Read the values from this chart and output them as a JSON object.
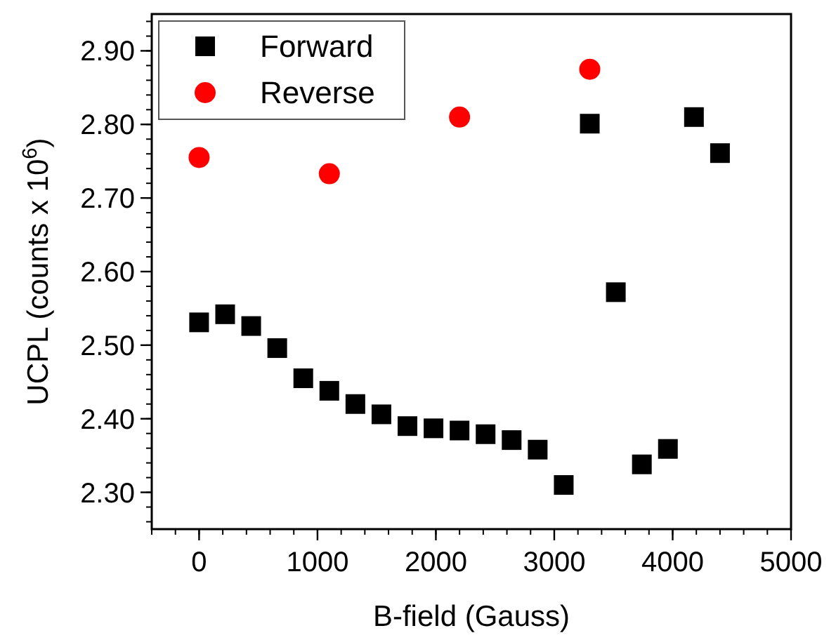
{
  "chart_data": {
    "type": "scatter",
    "xlabel": "B-field (Gauss)",
    "ylabel": "UCPL (counts x 10$^{6}$)",
    "xlim": [
      -400,
      5000
    ],
    "xticks": [
      0,
      1000,
      2000,
      3000,
      4000,
      5000
    ],
    "ylim": [
      2.25,
      2.95
    ],
    "yticks": [
      {
        "value": 2.3,
        "label": "2.30"
      },
      {
        "value": 2.4,
        "label": "2.40"
      },
      {
        "value": 2.5,
        "label": "2.50"
      },
      {
        "value": 2.6,
        "label": "2.60"
      },
      {
        "value": 2.7,
        "label": "2.70"
      },
      {
        "value": 2.8,
        "label": "2.80"
      },
      {
        "value": 2.9,
        "label": "2.90"
      }
    ],
    "grid": false,
    "legend": "top left",
    "series": [
      {
        "name": "Forward",
        "color": "#000000",
        "marker": "square",
        "x": [
          0,
          220,
          440,
          660,
          880,
          1100,
          1320,
          1540,
          1760,
          1980,
          2200,
          2420,
          2640,
          2860,
          3080,
          3300,
          3520,
          3740,
          3960,
          4180,
          4400
        ],
        "values": [
          2.531,
          2.542,
          2.526,
          2.496,
          2.455,
          2.438,
          2.42,
          2.406,
          2.39,
          2.387,
          2.384,
          2.379,
          2.371,
          2.358,
          2.31,
          2.801,
          2.572,
          2.338,
          2.359,
          2.81,
          2.761
        ]
      },
      {
        "name": "Reverse",
        "color": "#ff0000",
        "marker": "circle",
        "x": [
          0,
          1100,
          2200,
          3300
        ],
        "values": [
          2.755,
          2.733,
          2.81,
          2.875
        ]
      }
    ]
  }
}
